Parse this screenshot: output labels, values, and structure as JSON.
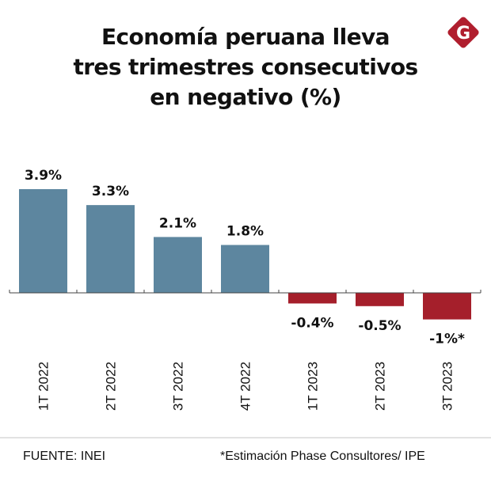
{
  "header": {
    "title_lines": [
      "Economía peruana lleva",
      "tres trimestres consecutivos",
      "en negativo (%)"
    ],
    "logo_letter": "G",
    "logo_color": "#b01e2e"
  },
  "chart_data": {
    "type": "bar",
    "title": "Economía peruana lleva tres trimestres consecutivos en negativo (%)",
    "xlabel": "",
    "ylabel": "",
    "categories": [
      "1T 2022",
      "2T 2022",
      "3T 2022",
      "4T 2022",
      "1T 2023",
      "2T 2023",
      "3T 2023"
    ],
    "values": [
      3.9,
      3.3,
      2.1,
      1.8,
      -0.4,
      -0.5,
      -1
    ],
    "data_labels": [
      "3.9%",
      "3.3%",
      "2.1%",
      "1.8%",
      "-0.4%",
      "-0.5%",
      "-1%*"
    ],
    "ylim": [
      -1,
      3.9
    ],
    "grid": false,
    "colors": {
      "positive": "#5d869f",
      "negative": "#a51f2b"
    }
  },
  "footer": {
    "source": "FUENTE: INEI",
    "note": "*Estimación Phase Consultores/ IPE"
  }
}
